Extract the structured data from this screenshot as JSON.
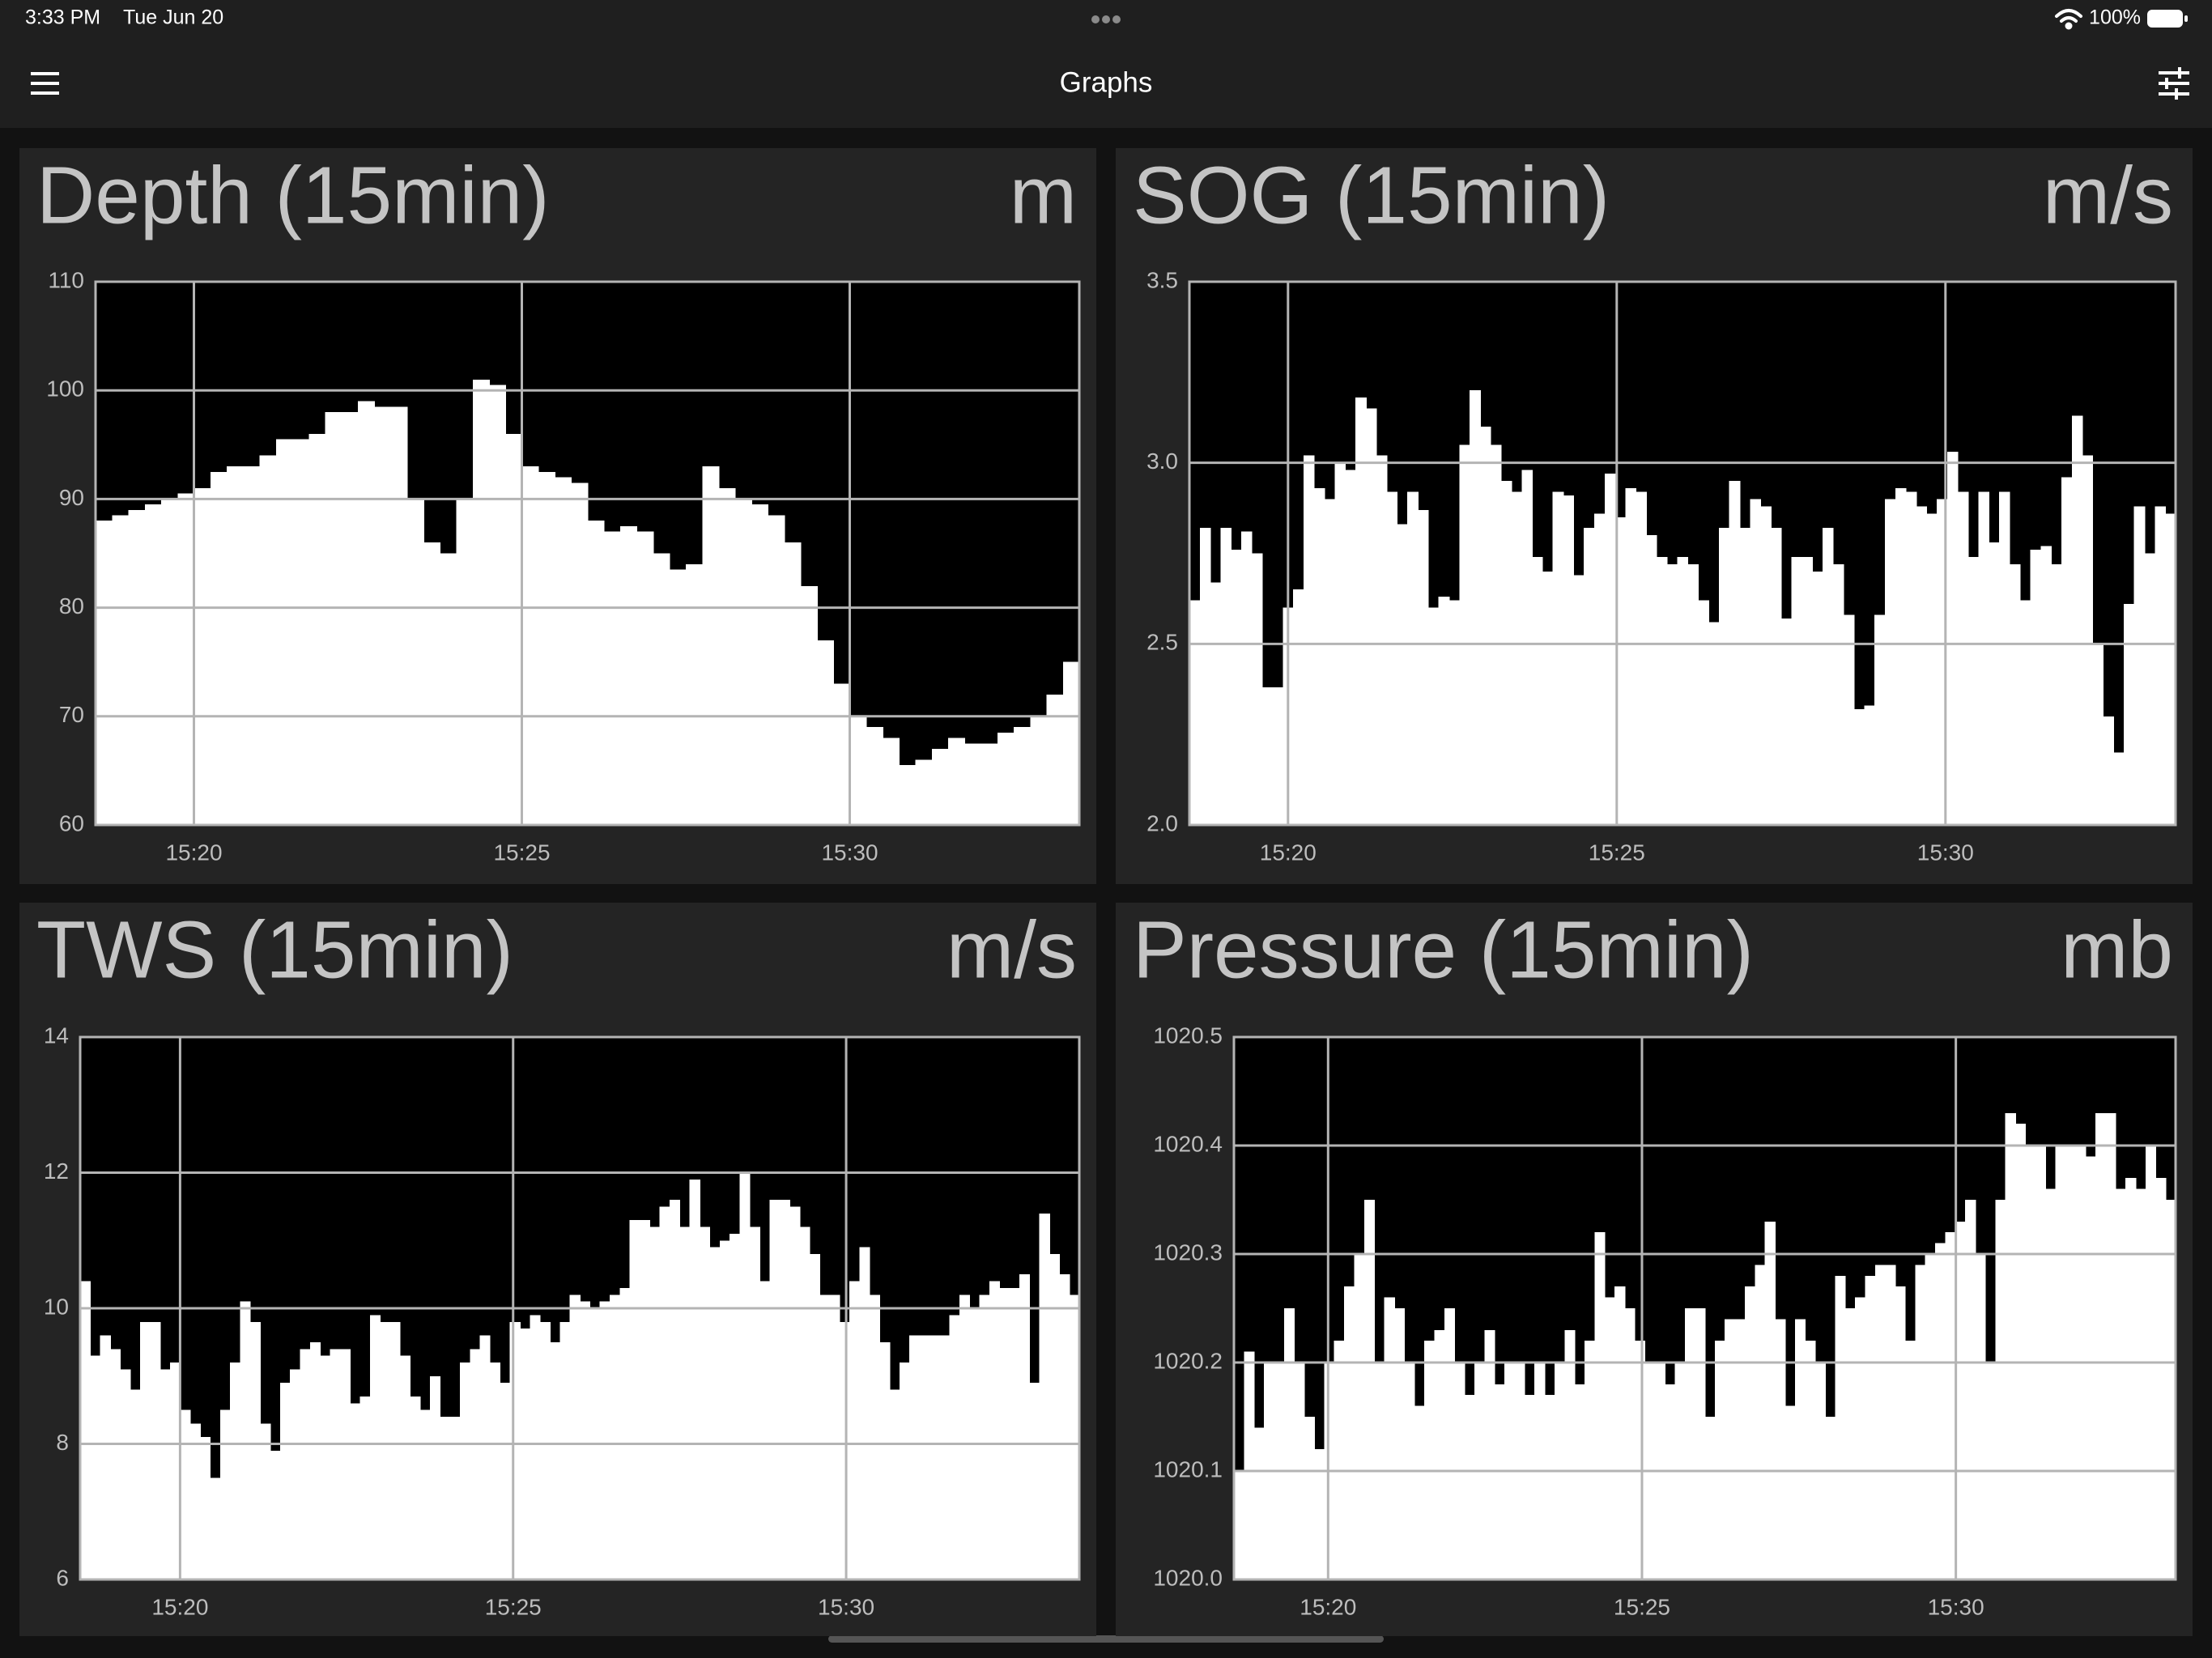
{
  "status_bar": {
    "time": "3:33 PM",
    "date": "Tue Jun 20",
    "battery": "100%"
  },
  "header": {
    "title": "Graphs"
  },
  "chart_data": [
    {
      "type": "bar",
      "title": "Depth (15min)",
      "unit": "m",
      "color": "#ffffff",
      "plot_background": "#000000",
      "grid": true,
      "xlim": [
        918.5,
        933.5
      ],
      "xticks": [
        {
          "value": 920,
          "label": "15:20"
        },
        {
          "value": 925,
          "label": "15:25"
        },
        {
          "value": 930,
          "label": "15:30"
        }
      ],
      "ylim": [
        60,
        110
      ],
      "yticks": [
        60,
        70,
        80,
        90,
        100,
        110
      ],
      "values": [
        88,
        88.5,
        89,
        89.5,
        90,
        90.5,
        91,
        92.5,
        93,
        93,
        94,
        95.5,
        95.5,
        96,
        98,
        98,
        99,
        98.5,
        98.5,
        90,
        86,
        85,
        90,
        101,
        100.5,
        96,
        93,
        92.5,
        92,
        91.5,
        88,
        87,
        87.5,
        87,
        85,
        83.5,
        84,
        93,
        91,
        90,
        89.5,
        88.5,
        86,
        82,
        77,
        73,
        70,
        69,
        68,
        65.5,
        66,
        67,
        68,
        67.5,
        67.5,
        68.5,
        69,
        70,
        72,
        75
      ]
    },
    {
      "type": "bar",
      "title": "SOG (15min)",
      "unit": "m/s",
      "color": "#ffffff",
      "plot_background": "#000000",
      "grid": true,
      "xlim": [
        918.5,
        933.5
      ],
      "xticks": [
        {
          "value": 920,
          "label": "15:20"
        },
        {
          "value": 925,
          "label": "15:25"
        },
        {
          "value": 930,
          "label": "15:30"
        }
      ],
      "ylim": [
        2.0,
        3.5
      ],
      "yticks": [
        {
          "value": 2,
          "label": "2.0"
        },
        2.5,
        {
          "value": 3,
          "label": "3.0"
        },
        3.5
      ],
      "values": [
        2.62,
        2.82,
        2.67,
        2.82,
        2.76,
        2.81,
        2.75,
        2.38,
        2.38,
        2.6,
        2.65,
        3.02,
        2.93,
        2.9,
        3.0,
        2.98,
        3.18,
        3.15,
        3.02,
        2.92,
        2.83,
        2.92,
        2.87,
        2.6,
        2.63,
        2.62,
        3.05,
        3.2,
        3.1,
        3.05,
        2.95,
        2.92,
        2.98,
        2.74,
        2.7,
        2.92,
        2.91,
        2.69,
        2.82,
        2.86,
        2.97,
        2.85,
        2.93,
        2.92,
        2.8,
        2.74,
        2.72,
        2.74,
        2.72,
        2.62,
        2.56,
        2.82,
        2.95,
        2.82,
        2.9,
        2.88,
        2.82,
        2.57,
        2.74,
        2.74,
        2.7,
        2.82,
        2.72,
        2.58,
        2.32,
        2.33,
        2.58,
        2.9,
        2.93,
        2.92,
        2.88,
        2.86,
        2.9,
        3.03,
        2.92,
        2.74,
        2.92,
        2.78,
        2.92,
        2.72,
        2.62,
        2.76,
        2.77,
        2.72,
        2.96,
        3.13,
        3.02,
        2.5,
        2.3,
        2.2,
        2.61,
        2.88,
        2.75,
        2.88,
        2.86
      ]
    },
    {
      "type": "bar",
      "title": "TWS (15min)",
      "unit": "m/s",
      "color": "#ffffff",
      "plot_background": "#000000",
      "grid": true,
      "xlim": [
        918.5,
        933.5
      ],
      "xticks": [
        {
          "value": 920,
          "label": "15:20"
        },
        {
          "value": 925,
          "label": "15:25"
        },
        {
          "value": 930,
          "label": "15:30"
        }
      ],
      "ylim": [
        6,
        14
      ],
      "yticks": [
        6,
        8,
        10,
        12,
        14
      ],
      "values": [
        10.4,
        9.3,
        9.6,
        9.4,
        9.1,
        8.8,
        9.8,
        9.8,
        9.1,
        9.2,
        8.5,
        8.3,
        8.1,
        7.5,
        8.5,
        9.2,
        10.1,
        9.8,
        8.3,
        7.9,
        8.9,
        9.1,
        9.4,
        9.5,
        9.3,
        9.4,
        9.4,
        8.6,
        8.7,
        9.9,
        9.8,
        9.8,
        9.3,
        8.7,
        8.5,
        9.0,
        8.4,
        8.4,
        9.2,
        9.4,
        9.6,
        9.2,
        8.9,
        9.8,
        9.7,
        9.9,
        9.8,
        9.5,
        9.8,
        10.2,
        10.1,
        10.0,
        10.1,
        10.2,
        10.3,
        11.3,
        11.3,
        11.2,
        11.5,
        11.6,
        11.2,
        11.9,
        11.2,
        10.9,
        11.0,
        11.1,
        12.0,
        11.2,
        10.4,
        11.6,
        11.6,
        11.5,
        11.2,
        10.8,
        10.2,
        10.2,
        9.8,
        10.4,
        10.9,
        10.2,
        9.5,
        8.8,
        9.2,
        9.6,
        9.6,
        9.6,
        9.6,
        9.9,
        10.2,
        10.0,
        10.2,
        10.4,
        10.3,
        10.3,
        10.5,
        8.9,
        11.4,
        10.8,
        10.5,
        10.2
      ]
    },
    {
      "type": "bar",
      "title": "Pressure (15min)",
      "unit": "mb",
      "color": "#ffffff",
      "plot_background": "#000000",
      "grid": true,
      "xlim": [
        918.5,
        933.5
      ],
      "xticks": [
        {
          "value": 920,
          "label": "15:20"
        },
        {
          "value": 925,
          "label": "15:25"
        },
        {
          "value": 930,
          "label": "15:30"
        }
      ],
      "ylim": [
        1020.0,
        1020.5
      ],
      "yticks": [
        {
          "value": 1020,
          "label": "1020.0"
        },
        1020.1,
        1020.2,
        1020.3,
        1020.4,
        1020.5
      ],
      "values": [
        1020.1,
        1020.21,
        1020.14,
        1020.2,
        1020.2,
        1020.25,
        1020.2,
        1020.15,
        1020.12,
        1020.2,
        1020.22,
        1020.27,
        1020.3,
        1020.35,
        1020.2,
        1020.26,
        1020.25,
        1020.2,
        1020.16,
        1020.22,
        1020.23,
        1020.25,
        1020.2,
        1020.17,
        1020.2,
        1020.23,
        1020.18,
        1020.2,
        1020.2,
        1020.17,
        1020.2,
        1020.17,
        1020.2,
        1020.23,
        1020.18,
        1020.22,
        1020.32,
        1020.26,
        1020.27,
        1020.25,
        1020.22,
        1020.2,
        1020.2,
        1020.18,
        1020.2,
        1020.25,
        1020.25,
        1020.15,
        1020.22,
        1020.24,
        1020.24,
        1020.27,
        1020.29,
        1020.33,
        1020.24,
        1020.16,
        1020.24,
        1020.22,
        1020.2,
        1020.15,
        1020.28,
        1020.25,
        1020.26,
        1020.28,
        1020.29,
        1020.29,
        1020.27,
        1020.22,
        1020.29,
        1020.3,
        1020.31,
        1020.32,
        1020.33,
        1020.35,
        1020.3,
        1020.2,
        1020.35,
        1020.43,
        1020.42,
        1020.4,
        1020.4,
        1020.36,
        1020.4,
        1020.4,
        1020.4,
        1020.39,
        1020.43,
        1020.43,
        1020.36,
        1020.37,
        1020.36,
        1020.4,
        1020.37,
        1020.35
      ]
    }
  ]
}
